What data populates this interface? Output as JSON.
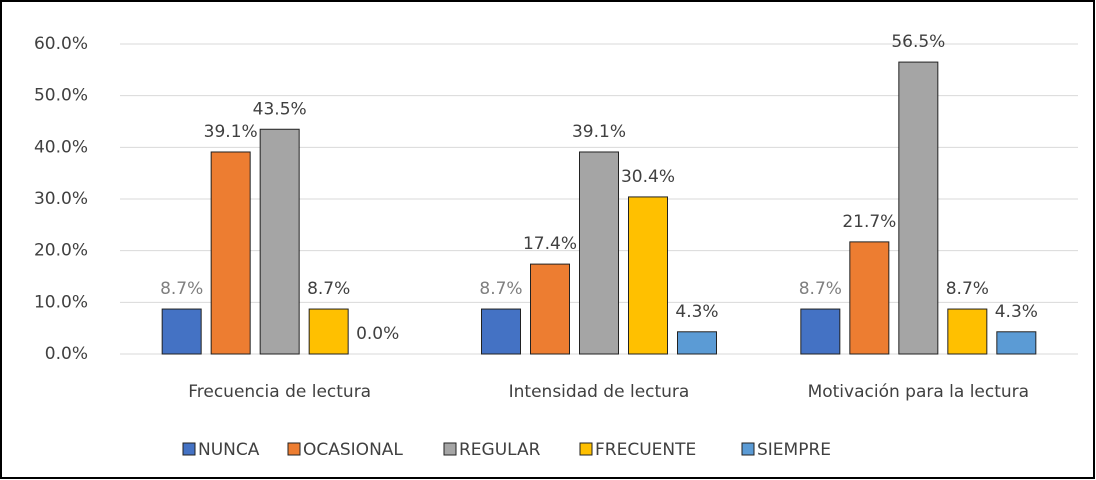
{
  "chart_data": {
    "type": "bar",
    "categories": [
      "Frecuencia de lectura",
      "Intensidad de lectura",
      "Motivación para la lectura"
    ],
    "series": [
      {
        "name": "NUNCA",
        "color": "#4472c4",
        "values": [
          8.7,
          8.7,
          8.7
        ],
        "value_labels": [
          "8.7%",
          "8.7%",
          "8.7%"
        ]
      },
      {
        "name": "OCASIONAL",
        "color": "#ed7d31",
        "values": [
          39.1,
          17.4,
          21.7
        ],
        "value_labels": [
          "39.1%",
          "17.4%",
          "21.7%"
        ]
      },
      {
        "name": "REGULAR",
        "color": "#a5a5a5",
        "values": [
          43.5,
          39.1,
          56.5
        ],
        "value_labels": [
          "43.5%",
          "39.1%",
          "56.5%"
        ]
      },
      {
        "name": "FRECUENTE",
        "color": "#ffc000",
        "values": [
          8.7,
          30.4,
          8.7
        ],
        "value_labels": [
          "8.7%",
          "30.4%",
          "8.7%"
        ]
      },
      {
        "name": "SIEMPRE",
        "color": "#5b9bd5",
        "values": [
          0.0,
          4.3,
          4.3
        ],
        "value_labels": [
          "0.0%",
          "4.3%",
          "4.3%"
        ]
      }
    ],
    "ylim": [
      0,
      60
    ],
    "yticks": [
      {
        "value": 0,
        "label": "0.0%"
      },
      {
        "value": 10,
        "label": "10.0%"
      },
      {
        "value": 20,
        "label": "20.0%"
      },
      {
        "value": 30,
        "label": "30.0%"
      },
      {
        "value": 40,
        "label": "40.0%"
      },
      {
        "value": 50,
        "label": "50.0%"
      },
      {
        "value": 60,
        "label": "60.0%"
      }
    ],
    "grid": true,
    "legend": "bottom"
  }
}
